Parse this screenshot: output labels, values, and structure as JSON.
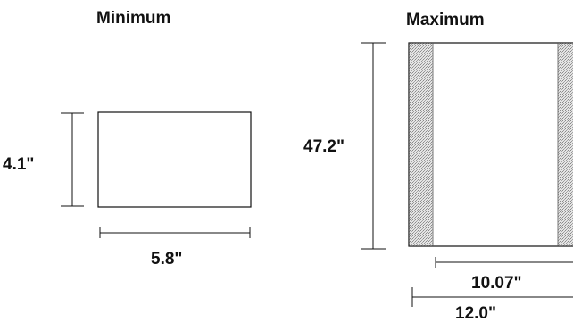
{
  "minimum": {
    "title": "Minimum",
    "height_label": "4.1\"",
    "width_label": "5.8\""
  },
  "maximum": {
    "title": "Maximum",
    "height_label": "47.2\"",
    "inner_width_label": "10.07\"",
    "outer_width_label": "12.0\""
  },
  "colors": {
    "line": "#111111",
    "shading": "#c9c9c9"
  }
}
